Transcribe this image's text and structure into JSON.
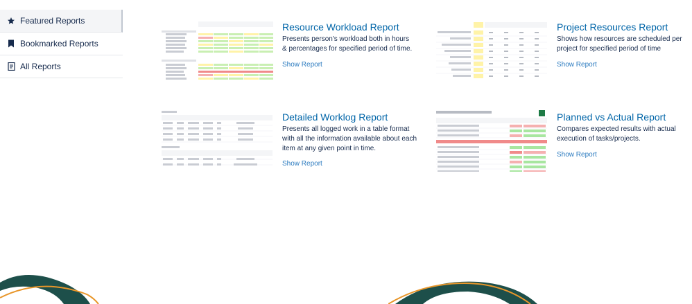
{
  "sidebar": {
    "items": [
      {
        "label": "Featured Reports",
        "icon": "star-icon"
      },
      {
        "label": "Bookmarked Reports",
        "icon": "bookmark-icon"
      },
      {
        "label": "All Reports",
        "icon": "report-list-icon"
      }
    ]
  },
  "reports": [
    {
      "title": "Resource Workload Report",
      "description": "Presents person's workload both in hours & percentages for specified period of time.",
      "link": "Show Report"
    },
    {
      "title": "Project Resources Report",
      "description": "Shows how resources are scheduled per project for specified period of time",
      "link": "Show Report"
    },
    {
      "title": "Detailed Worklog Report",
      "description": "Presents all logged work in a table format with all the information available about each item at any given point in time.",
      "link": "Show Report"
    },
    {
      "title": "Planned vs Actual Report",
      "description": "Compares expected results with actual execution of tasks/projects.",
      "link": "Show Report"
    }
  ],
  "colors": {
    "link": "#2a7abf",
    "title": "#0065a8",
    "deco_dark": "#1d4f4a",
    "deco_orange": "#e8962a"
  }
}
